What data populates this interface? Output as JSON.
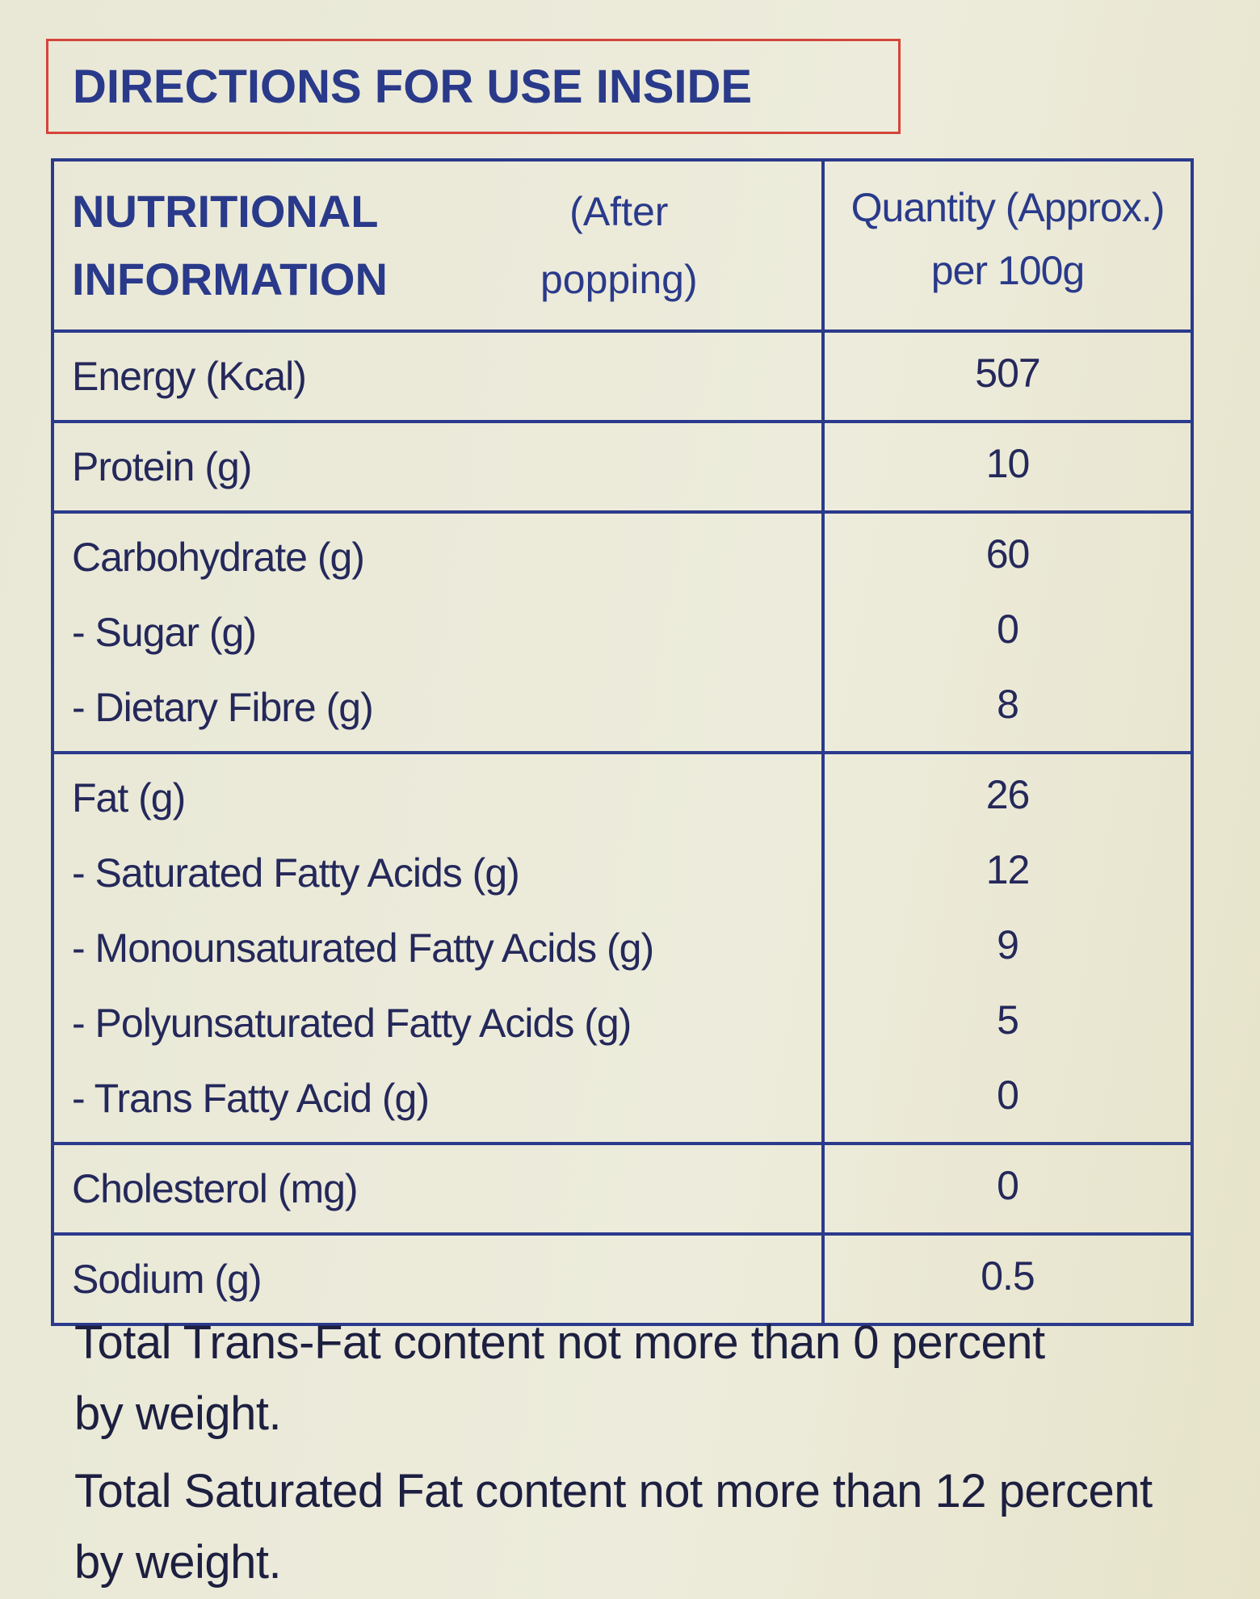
{
  "header": {
    "title": "DIRECTIONS FOR USE INSIDE"
  },
  "table": {
    "heading": {
      "title_line1": "NUTRITIONAL",
      "title_line2": "INFORMATION",
      "note_line1": "(After",
      "note_line2": "popping)",
      "column_line1": "Quantity (Approx.)",
      "column_line2": "per 100g"
    },
    "groups": [
      [
        [
          "Energy (Kcal)",
          "507"
        ]
      ],
      [
        [
          "Protein (g)",
          "10"
        ]
      ],
      [
        [
          "Carbohydrate (g)",
          "60"
        ],
        [
          "- Sugar (g)",
          "0"
        ],
        [
          "- Dietary Fibre (g)",
          "8"
        ]
      ],
      [
        [
          "Fat (g)",
          "26"
        ],
        [
          "- Saturated Fatty Acids (g)",
          "12"
        ],
        [
          "- Monounsaturated Fatty Acids (g)",
          "9"
        ],
        [
          "- Polyunsaturated Fatty Acids (g)",
          "5"
        ],
        [
          "- Trans Fatty Acid (g)",
          "0"
        ]
      ],
      [
        [
          "Cholesterol (mg)",
          "0"
        ]
      ],
      [
        [
          "Sodium (g)",
          "0.5"
        ]
      ]
    ]
  },
  "footnotes": [
    [
      "Total Trans-Fat content not more than 0 percent",
      "by weight."
    ],
    [
      "Total Saturated Fat content not more than 12 percent",
      "by weight."
    ]
  ]
}
